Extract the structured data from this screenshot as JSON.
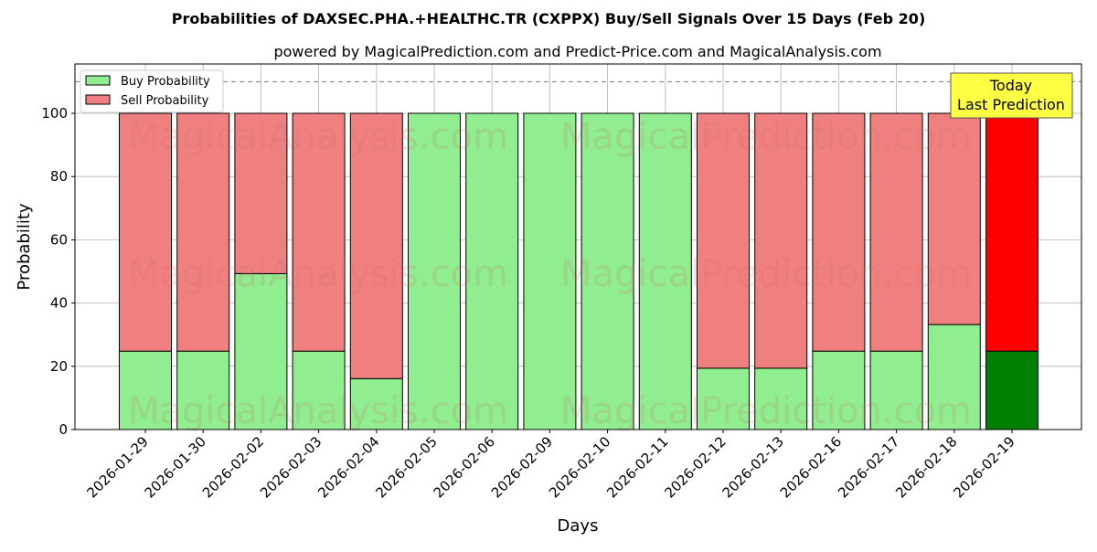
{
  "chart_data": {
    "type": "bar",
    "stacked": true,
    "title": "Probabilities of DAXSEC.PHA.+HEALTHC.TR (CXPPX) Buy/Sell Signals Over 15 Days (Feb 20)",
    "subtitle": "powered by MagicalPrediction.com and Predict-Price.com and MagicalAnalysis.com",
    "xlabel": "Days",
    "ylabel": "Probability",
    "ylim": [
      0,
      115.6
    ],
    "yticks": [
      0,
      20,
      40,
      60,
      80,
      100
    ],
    "reference_line": 110,
    "categories": [
      "2026-01-29",
      "2026-01-30",
      "2026-02-02",
      "2026-02-03",
      "2026-02-04",
      "2026-02-05",
      "2026-02-06",
      "2026-02-09",
      "2026-02-10",
      "2026-02-11",
      "2026-02-12",
      "2026-02-13",
      "2026-02-16",
      "2026-02-17",
      "2026-02-18",
      "2026-02-19"
    ],
    "series": [
      {
        "name": "Buy Probability",
        "color": "#90EE90",
        "values": [
          24.8,
          24.8,
          49.3,
          24.8,
          16.1,
          100,
          100,
          100,
          100,
          100,
          19.4,
          19.4,
          24.8,
          24.8,
          33.2,
          24.8
        ]
      },
      {
        "name": "Sell Probability",
        "color": "#F08080",
        "values": [
          75.2,
          75.2,
          50.7,
          75.2,
          83.9,
          0,
          0,
          0,
          0,
          0,
          80.6,
          80.6,
          75.2,
          75.2,
          66.8,
          75.2
        ]
      }
    ],
    "highlight": {
      "index": 15,
      "buy_color": "#008000",
      "sell_color": "#FF0000"
    },
    "legend_position": "top-left",
    "grid": true,
    "annotation": {
      "line1": "Today",
      "line2": "Last Prediction"
    },
    "watermarks": [
      "MagicalAnalysis.com",
      "MagicalPrediction.com"
    ]
  }
}
